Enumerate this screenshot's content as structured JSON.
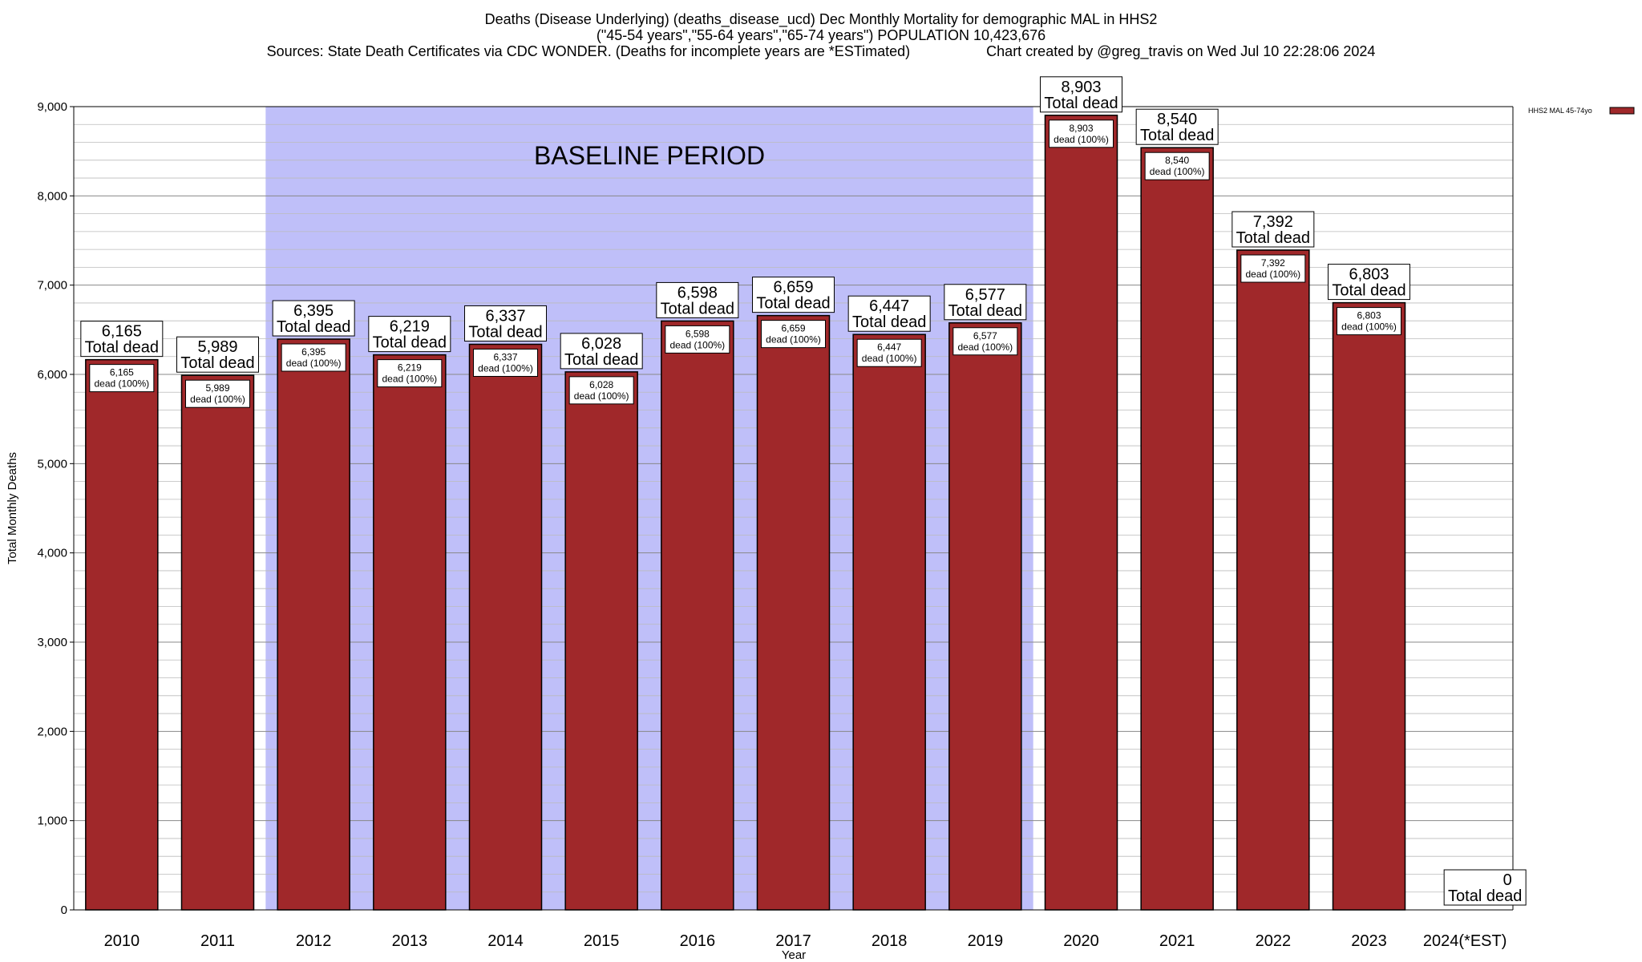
{
  "titles": {
    "line1": "Deaths (Disease Underlying) (deaths_disease_ucd) Dec Monthly Mortality for demographic MAL in HHS2",
    "line2": "(\"45-54 years\",\"55-64 years\",\"65-74 years\") POPULATION 10,423,676",
    "sources": "Sources: State Death Certificates via CDC WONDER. (Deaths for incomplete years are *ESTimated)",
    "credit": "Chart created by @greg_travis on Wed Jul 10 22:28:06 2024"
  },
  "chart_data": {
    "type": "bar",
    "title": "Deaths (Disease Underlying) (deaths_disease_ucd) Dec Monthly Mortality for demographic MAL in HHS2",
    "xlabel": "Year",
    "ylabel": "Total Monthly Deaths",
    "ylim": [
      0,
      9000
    ],
    "yticks": [
      0,
      1000,
      2000,
      3000,
      4000,
      5000,
      6000,
      7000,
      8000,
      9000
    ],
    "ytick_labels": [
      "0",
      "1,000",
      "2,000",
      "3,000",
      "4,000",
      "5,000",
      "6,000",
      "7,000",
      "8,000",
      "9,000"
    ],
    "categories": [
      "2010",
      "2011",
      "2012",
      "2013",
      "2014",
      "2015",
      "2016",
      "2017",
      "2018",
      "2019",
      "2020",
      "2021",
      "2022",
      "2023",
      "2024(*EST)"
    ],
    "values": [
      6165,
      5989,
      6395,
      6219,
      6337,
      6028,
      6598,
      6659,
      6447,
      6577,
      8903,
      8540,
      7392,
      6803,
      0
    ],
    "value_labels": [
      "6,165",
      "5,989",
      "6,395",
      "6,219",
      "6,337",
      "6,028",
      "6,598",
      "6,659",
      "6,447",
      "6,577",
      "8,903",
      "8,540",
      "7,392",
      "6,803",
      "0"
    ],
    "top_label_suffix": "Total dead",
    "inner_label_suffix": "dead (100%)",
    "series_name": "HHS2 MAL 45-74yo",
    "bar_color": "#a0282a",
    "baseline_period": {
      "label": "BASELINE PERIOD",
      "start": "2012",
      "end": "2019",
      "color": "#bfbff9"
    },
    "legend": "top-right",
    "grid": true
  }
}
